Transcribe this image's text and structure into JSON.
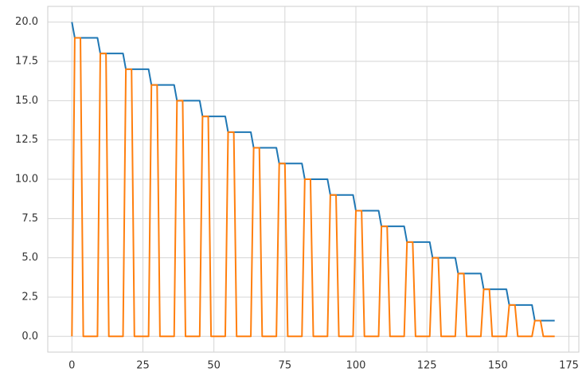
{
  "chart_data": {
    "type": "line",
    "xlim": [
      -8.5,
      178.5
    ],
    "ylim": [
      -1,
      21
    ],
    "xticks": [
      0,
      25,
      50,
      75,
      100,
      125,
      150,
      175
    ],
    "yticks": [
      {
        "value": 0,
        "label": "0.0"
      },
      {
        "value": 2.5,
        "label": "2.5"
      },
      {
        "value": 5,
        "label": "5.0"
      },
      {
        "value": 7.5,
        "label": "7.5"
      },
      {
        "value": 10,
        "label": "10.0"
      },
      {
        "value": 12.5,
        "label": "12.5"
      },
      {
        "value": 15,
        "label": "15.0"
      },
      {
        "value": 17.5,
        "label": "17.5"
      },
      {
        "value": 20,
        "label": "20.0"
      }
    ],
    "grid": true,
    "series": [
      {
        "color": "#1f77b4",
        "x": [
          0,
          1,
          9,
          10,
          18,
          19,
          27,
          28,
          36,
          37,
          45,
          46,
          54,
          55,
          63,
          64,
          72,
          73,
          81,
          82,
          90,
          91,
          99,
          100,
          108,
          109,
          117,
          118,
          126,
          127,
          135,
          136,
          144,
          145,
          153,
          154,
          162,
          163,
          170
        ],
        "values": [
          20,
          19,
          19,
          18,
          18,
          17,
          17,
          16,
          16,
          15,
          15,
          14,
          14,
          13,
          13,
          12,
          12,
          11,
          11,
          10,
          10,
          9,
          9,
          8,
          8,
          7,
          7,
          6,
          6,
          5,
          5,
          4,
          4,
          3,
          3,
          2,
          2,
          1,
          1
        ]
      },
      {
        "color": "#ff7f0e",
        "x": [
          0,
          1,
          3,
          4,
          9,
          10,
          12,
          13,
          18,
          19,
          21,
          22,
          27,
          28,
          30,
          31,
          36,
          37,
          39,
          40,
          45,
          46,
          48,
          49,
          54,
          55,
          57,
          58,
          63,
          64,
          66,
          67,
          72,
          73,
          75,
          76,
          81,
          82,
          84,
          85,
          90,
          91,
          93,
          94,
          99,
          100,
          102,
          103,
          108,
          109,
          111,
          112,
          117,
          118,
          120,
          121,
          126,
          127,
          129,
          130,
          135,
          136,
          138,
          139,
          144,
          145,
          147,
          148,
          153,
          154,
          156,
          157,
          162,
          163,
          165,
          166,
          170
        ],
        "values": [
          0,
          19,
          19,
          0,
          0,
          18,
          18,
          0,
          0,
          17,
          17,
          0,
          0,
          16,
          16,
          0,
          0,
          15,
          15,
          0,
          0,
          14,
          14,
          0,
          0,
          13,
          13,
          0,
          0,
          12,
          12,
          0,
          0,
          11,
          11,
          0,
          0,
          10,
          10,
          0,
          0,
          9,
          9,
          0,
          0,
          8,
          8,
          0,
          0,
          7,
          7,
          0,
          0,
          6,
          6,
          0,
          0,
          5,
          5,
          0,
          0,
          4,
          4,
          0,
          0,
          3,
          3,
          0,
          0,
          2,
          2,
          0,
          0,
          1,
          1,
          0,
          0
        ]
      }
    ]
  }
}
